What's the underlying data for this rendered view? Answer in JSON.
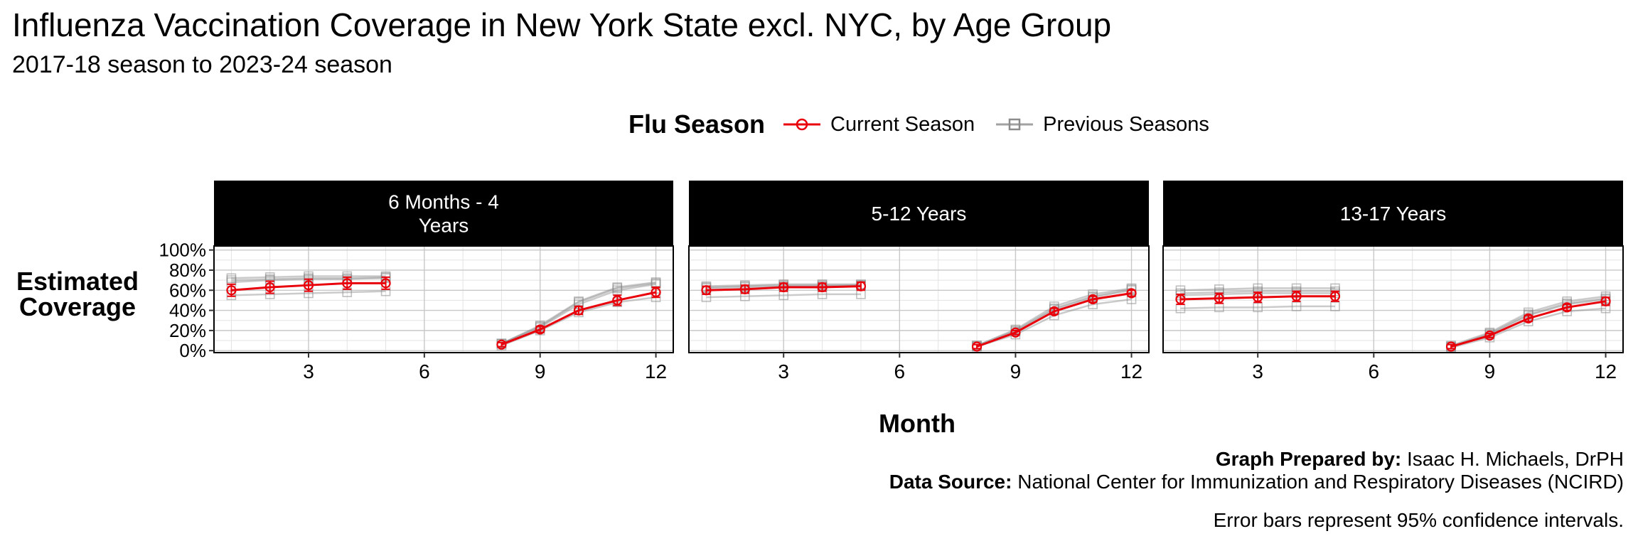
{
  "title": "Influenza Vaccination Coverage in New York State excl. NYC, by Age Group",
  "subtitle": "2017-18 season to 2023-24 season",
  "legend": {
    "title": "Flu Season",
    "items": [
      {
        "label": "Current Season",
        "color": "#e8000b",
        "marker": "circle"
      },
      {
        "label": "Previous Seasons",
        "color": "#8c8c8c",
        "marker": "square"
      }
    ]
  },
  "caption": {
    "prepared_label": "Graph Prepared by:",
    "prepared_value": "Isaac H. Michaels, DrPH",
    "source_label": "Data Source:",
    "source_value": "National Center for Immunization and Respiratory Diseases (NCIRD)",
    "note": "Error bars represent 95% confidence intervals."
  },
  "chart_data": {
    "type": "line",
    "xlabel": "Month",
    "ylabel": "Estimated Coverage",
    "xlim": [
      0.55,
      12.45
    ],
    "ylim": [
      -2,
      104
    ],
    "x_ticks": [
      3,
      6,
      9,
      12
    ],
    "y_ticks": [
      0,
      20,
      40,
      60,
      80,
      100
    ],
    "y_tick_labels": [
      "0%",
      "20%",
      "40%",
      "60%",
      "80%",
      "100%"
    ],
    "grid": true,
    "panels": [
      {
        "label": "6 Months - 4\nYears",
        "current_season": {
          "segments": [
            {
              "x": [
                1,
                2,
                3,
                4,
                5
              ],
              "y": [
                60,
                63,
                65,
                67,
                67
              ],
              "ci_low": [
                54,
                57,
                59,
                61,
                61
              ],
              "ci_high": [
                66,
                69,
                71,
                73,
                73
              ]
            },
            {
              "x": [
                8,
                9,
                10,
                11,
                12
              ],
              "y": [
                6,
                21,
                40,
                50,
                58
              ],
              "ci_low": [
                4,
                18,
                36,
                45,
                53
              ],
              "ci_high": [
                8,
                24,
                44,
                55,
                63
              ]
            }
          ]
        },
        "previous_seasons": [
          {
            "segments": [
              {
                "x": [
                  1,
                  2,
                  3,
                  4,
                  5
                ],
                "y": [
                  70,
                  71,
                  72,
                  72,
                  73
                ]
              },
              {
                "x": [
                  8,
                  9,
                  10,
                  11,
                  12
                ],
                "y": [
                  7,
                  24,
                  48,
                  62,
                  67
                ]
              }
            ]
          },
          {
            "segments": [
              {
                "x": [
                  1,
                  2,
                  3,
                  4,
                  5
                ],
                "y": [
                  68,
                  70,
                  71,
                  71,
                  72
                ]
              },
              {
                "x": [
                  8,
                  9,
                  10,
                  11,
                  12
                ],
                "y": [
                  7,
                  23,
                  46,
                  60,
                  66
                ]
              }
            ]
          },
          {
            "segments": [
              {
                "x": [
                  1,
                  2,
                  3,
                  4,
                  5
                ],
                "y": [
                  72,
                  73,
                  74,
                  74,
                  74
                ]
              },
              {
                "x": [
                  8,
                  9,
                  10,
                  11,
                  12
                ],
                "y": [
                  7,
                  25,
                  49,
                  63,
                  68
                ]
              }
            ]
          },
          {
            "segments": [
              {
                "x": [
                  1,
                  2,
                  3,
                  4,
                  5
                ],
                "y": [
                  55,
                  56,
                  57,
                  58,
                  59
                ]
              },
              {
                "x": [
                  8,
                  9,
                  10,
                  11,
                  12
                ],
                "y": [
                  5,
                  20,
                  38,
                  48,
                  53
                ]
              }
            ]
          }
        ]
      },
      {
        "label": "5-12 Years",
        "current_season": {
          "segments": [
            {
              "x": [
                1,
                2,
                3,
                4,
                5
              ],
              "y": [
                60,
                61,
                63,
                63,
                64
              ],
              "ci_low": [
                56,
                57,
                59,
                59,
                60
              ],
              "ci_high": [
                64,
                65,
                67,
                67,
                68
              ]
            },
            {
              "x": [
                8,
                9,
                10,
                11,
                12
              ],
              "y": [
                4,
                18,
                39,
                51,
                57
              ],
              "ci_low": [
                2,
                16,
                36,
                48,
                54
              ],
              "ci_high": [
                6,
                20,
                42,
                54,
                60
              ]
            }
          ]
        },
        "previous_seasons": [
          {
            "segments": [
              {
                "x": [
                  1,
                  2,
                  3,
                  4,
                  5
                ],
                "y": [
                  64,
                  65,
                  66,
                  66,
                  66
                ]
              },
              {
                "x": [
                  8,
                  9,
                  10,
                  11,
                  12
                ],
                "y": [
                  5,
                  21,
                  44,
                  56,
                  62
                ]
              }
            ]
          },
          {
            "segments": [
              {
                "x": [
                  1,
                  2,
                  3,
                  4,
                  5
                ],
                "y": [
                  62,
                  63,
                  64,
                  64,
                  65
                ]
              },
              {
                "x": [
                  8,
                  9,
                  10,
                  11,
                  12
                ],
                "y": [
                  4,
                  19,
                  41,
                  53,
                  60
                ]
              }
            ]
          },
          {
            "segments": [
              {
                "x": [
                  1,
                  2,
                  3,
                  4,
                  5
                ],
                "y": [
                  63,
                  64,
                  65,
                  65,
                  65
                ]
              },
              {
                "x": [
                  8,
                  9,
                  10,
                  11,
                  12
                ],
                "y": [
                  5,
                  20,
                  42,
                  54,
                  61
                ]
              }
            ]
          },
          {
            "segments": [
              {
                "x": [
                  1,
                  2,
                  3,
                  4,
                  5
                ],
                "y": [
                  53,
                  54,
                  55,
                  56,
                  56
                ]
              },
              {
                "x": [
                  8,
                  9,
                  10,
                  11,
                  12
                ],
                "y": [
                  4,
                  16,
                  35,
                  46,
                  51
                ]
              }
            ]
          }
        ]
      },
      {
        "label": "13-17 Years",
        "current_season": {
          "segments": [
            {
              "x": [
                1,
                2,
                3,
                4,
                5
              ],
              "y": [
                51,
                52,
                53,
                54,
                54
              ],
              "ci_low": [
                46,
                47,
                48,
                49,
                49
              ],
              "ci_high": [
                56,
                57,
                58,
                59,
                59
              ]
            },
            {
              "x": [
                8,
                9,
                10,
                11,
                12
              ],
              "y": [
                4,
                15,
                32,
                43,
                49
              ],
              "ci_low": [
                2,
                13,
                29,
                40,
                45
              ],
              "ci_high": [
                6,
                17,
                35,
                46,
                53
              ]
            }
          ]
        },
        "previous_seasons": [
          {
            "segments": [
              {
                "x": [
                  1,
                  2,
                  3,
                  4,
                  5
                ],
                "y": [
                  60,
                  61,
                  62,
                  62,
                  62
                ]
              },
              {
                "x": [
                  8,
                  9,
                  10,
                  11,
                  12
                ],
                "y": [
                  5,
                  18,
                  38,
                  49,
                  54
                ]
              }
            ]
          },
          {
            "segments": [
              {
                "x": [
                  1,
                  2,
                  3,
                  4,
                  5
                ],
                "y": [
                  57,
                  58,
                  59,
                  59,
                  59
                ]
              },
              {
                "x": [
                  8,
                  9,
                  10,
                  11,
                  12
                ],
                "y": [
                  4,
                  17,
                  36,
                  47,
                  52
                ]
              }
            ]
          },
          {
            "segments": [
              {
                "x": [
                  1,
                  2,
                  3,
                  4,
                  5
                ],
                "y": [
                  55,
                  56,
                  57,
                  57,
                  57
                ]
              },
              {
                "x": [
                  8,
                  9,
                  10,
                  11,
                  12
                ],
                "y": [
                  4,
                  16,
                  35,
                  46,
                  51
                ]
              }
            ]
          },
          {
            "segments": [
              {
                "x": [
                  1,
                  2,
                  3,
                  4,
                  5
                ],
                "y": [
                  42,
                  43,
                  43,
                  44,
                  44
                ]
              },
              {
                "x": [
                  8,
                  9,
                  10,
                  11,
                  12
                ],
                "y": [
                  3,
                  13,
                  29,
                  39,
                  42
                ]
              }
            ]
          }
        ]
      }
    ]
  }
}
